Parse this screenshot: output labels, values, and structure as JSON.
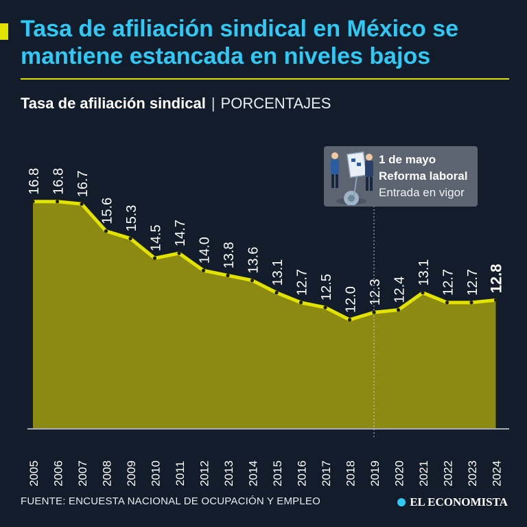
{
  "title": "Tasa de afiliación sindical en México se mantiene estancada en niveles bajos",
  "subtitle": {
    "main": "Tasa de afiliación sindical",
    "separator": "|",
    "unit": "PORCENTAJES"
  },
  "annotation": {
    "date": "1 de mayo",
    "event": "Reforma laboral",
    "note": "Entrada en vigor",
    "year": "2019"
  },
  "source": "FUENTE: ENCUESTA NACIONAL DE OCUPACIÓN Y EMPLEO",
  "brand": "EL ECONOMISTA",
  "colors": {
    "title": "#2ec9f4",
    "accent": "#e3e300",
    "area": "#8c8a12",
    "line": "#e3e300",
    "background": "#121c2a"
  },
  "chart_data": {
    "type": "area",
    "x": [
      "2005",
      "2006",
      "2007",
      "2008",
      "2009",
      "2010",
      "2011",
      "2012",
      "2013",
      "2014",
      "2015",
      "2016",
      "2017",
      "2018",
      "2019",
      "2020",
      "2021",
      "2022",
      "2023",
      "2024"
    ],
    "values": [
      16.8,
      16.8,
      16.7,
      15.6,
      15.3,
      14.5,
      14.7,
      14.0,
      13.8,
      13.6,
      13.1,
      12.7,
      12.5,
      12.0,
      12.3,
      12.4,
      13.1,
      12.7,
      12.7,
      12.8
    ],
    "labels": [
      "16.8",
      "16.8",
      "16.7",
      "15.6",
      "15.3",
      "14.5",
      "14.7",
      "14.0",
      "13.8",
      "13.6",
      "13.1",
      "12.7",
      "12.5",
      "12.0",
      "12.3",
      "12.4",
      "13.1",
      "12.7",
      "12.7",
      "12.8"
    ],
    "highlight_last": true,
    "grid": false
  }
}
